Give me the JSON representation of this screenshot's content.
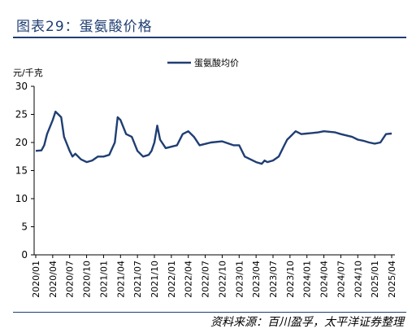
{
  "header": {
    "figure_title": "图表29：蛋氨酸价格"
  },
  "footer": {
    "source": "资料来源：百川盈孚，太平洋证券整理"
  },
  "chart_data": {
    "type": "line",
    "title": "",
    "xlabel": "",
    "ylabel": "元/千克",
    "ylim": [
      0,
      30
    ],
    "yticks": [
      0,
      5,
      10,
      15,
      20,
      25,
      30
    ],
    "grid": false,
    "legend_position": "top-center",
    "x_tick_labels": [
      "2020/01",
      "2020/04",
      "2020/07",
      "2020/10",
      "2021/01",
      "2021/04",
      "2021/07",
      "2021/10",
      "2022/01",
      "2022/04",
      "2022/07",
      "2022/10",
      "2023/01",
      "2023/04",
      "2023/07",
      "2023/10",
      "2024/01",
      "2024/04",
      "2024/07",
      "2024/10",
      "2025/01",
      "2025/04"
    ],
    "series": [
      {
        "name": "蛋氨酸均价",
        "color": "#1f3e73",
        "x": [
          "2020/01",
          "2020/02",
          "2020/02",
          "2020/03",
          "2020/04",
          "2020/04",
          "2020/05",
          "2020/05",
          "2020/06",
          "2020/07",
          "2020/07",
          "2020/08",
          "2020/09",
          "2020/10",
          "2020/11",
          "2020/12",
          "2021/01",
          "2021/02",
          "2021/03",
          "2021/03",
          "2021/04",
          "2021/05",
          "2021/06",
          "2021/07",
          "2021/08",
          "2021/09",
          "2021/09",
          "2021/10",
          "2021/10",
          "2021/11",
          "2021/12",
          "2022/02",
          "2022/03",
          "2022/04",
          "2022/05",
          "2022/06",
          "2022/08",
          "2022/10",
          "2022/12",
          "2023/01",
          "2023/02",
          "2023/03",
          "2023/04",
          "2023/05",
          "2023/05",
          "2023/06",
          "2023/07",
          "2023/08",
          "2023/09",
          "2023/09",
          "2023/10",
          "2023/11",
          "2023/12",
          "2024/01",
          "2024/02",
          "2024/03",
          "2024/04",
          "2024/06",
          "2024/07",
          "2024/09",
          "2024/10",
          "2024/11",
          "2024/12",
          "2025/01",
          "2025/02",
          "2025/03",
          "2025/04"
        ],
        "values": [
          18.5,
          18.6,
          19.5,
          21.5,
          24.0,
          25.5,
          25.0,
          24.5,
          21.0,
          18.5,
          17.5,
          18.0,
          17.0,
          16.5,
          16.8,
          17.5,
          17.5,
          17.8,
          20.0,
          24.5,
          24.0,
          21.5,
          21.0,
          18.5,
          17.5,
          17.8,
          18.5,
          20.0,
          23.0,
          20.5,
          19.0,
          19.5,
          21.5,
          22.0,
          21.0,
          19.5,
          20.0,
          20.2,
          19.5,
          19.5,
          17.5,
          17.0,
          16.5,
          16.2,
          16.8,
          16.5,
          16.8,
          17.5,
          19.5,
          20.5,
          21.0,
          22.0,
          21.5,
          21.6,
          21.7,
          21.8,
          22.0,
          21.8,
          21.5,
          21.0,
          20.5,
          20.3,
          20.0,
          19.8,
          20.0,
          21.5,
          21.6
        ]
      }
    ]
  }
}
